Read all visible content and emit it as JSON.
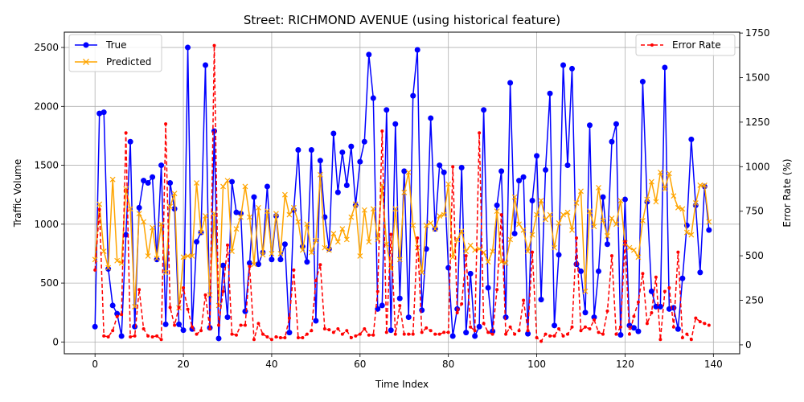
{
  "chart_data": {
    "type": "line",
    "title": "Street: RICHMOND AVENUE (using historical feature)",
    "xlabel": "Time Index",
    "ylabel_left": "Traffic Volume",
    "ylabel_right": "Error Rate (%)",
    "xlim": [
      -6.95,
      145.95
    ],
    "ylim_left": [
      -100,
      2630
    ],
    "ylim_right": [
      -50,
      1755
    ],
    "xticks": [
      0,
      20,
      40,
      60,
      80,
      100,
      120,
      140
    ],
    "yticks_left": [
      0,
      500,
      1000,
      1500,
      2000,
      2500
    ],
    "yticks_right": [
      0,
      250,
      500,
      750,
      1000,
      1250,
      1500,
      1750
    ],
    "grid": true,
    "legend_left": "upper-left",
    "legend_right": "upper-right",
    "colors": {
      "true": "#0000ff",
      "predicted": "#ffa500",
      "error": "#ff0000"
    },
    "series": [
      {
        "name": "True",
        "axis": "left",
        "values": [
          130,
          1940,
          1950,
          620,
          310,
          240,
          50,
          910,
          1700,
          130,
          1140,
          1370,
          1350,
          1400,
          700,
          1500,
          150,
          1350,
          1130,
          150,
          100,
          2500,
          110,
          850,
          930,
          2350,
          120,
          1790,
          30,
          650,
          210,
          1360,
          1100,
          1090,
          260,
          670,
          1230,
          660,
          760,
          1320,
          700,
          1070,
          700,
          830,
          80,
          1120,
          1630,
          810,
          680,
          1630,
          180,
          1540,
          1060,
          790,
          1770,
          1270,
          1610,
          1330,
          1660,
          1160,
          1530,
          1700,
          2440,
          2070,
          280,
          310,
          1970,
          100,
          1850,
          370,
          1450,
          210,
          2090,
          2480,
          270,
          790,
          1900,
          960,
          1500,
          1440,
          630,
          50,
          280,
          1480,
          80,
          580,
          50,
          130,
          1970,
          460,
          90,
          1160,
          1450,
          210,
          2200,
          920,
          1370,
          1400,
          70,
          1200,
          1580,
          360,
          1460,
          2110,
          140,
          740,
          2350,
          1500,
          2320,
          660,
          600,
          250,
          1840,
          210,
          600,
          1230,
          830,
          1700,
          1850,
          60,
          1210,
          140,
          120,
          90,
          2210,
          1190,
          430,
          300,
          300,
          2330,
          280,
          290,
          110,
          540,
          990,
          1720,
          1160,
          590,
          1320,
          950
        ]
      },
      {
        "name": "Predicted",
        "axis": "left",
        "values": [
          700,
          1170,
          770,
          630,
          1380,
          690,
          670,
          1300,
          1130,
          300,
          1090,
          1020,
          730,
          970,
          710,
          1000,
          590,
          1150,
          1260,
          290,
          720,
          730,
          730,
          1350,
          930,
          1070,
          400,
          1090,
          310,
          1320,
          1370,
          770,
          960,
          1060,
          1320,
          1060,
          660,
          1140,
          740,
          1110,
          750,
          1090,
          750,
          1250,
          1080,
          1140,
          1020,
          780,
          1000,
          760,
          860,
          1420,
          800,
          780,
          920,
          850,
          960,
          870,
          1060,
          1170,
          730,
          1120,
          850,
          1130,
          870,
          1330,
          830,
          620,
          1130,
          700,
          1270,
          1440,
          990,
          800,
          590,
          990,
          1010,
          960,
          1070,
          1080,
          1340,
          720,
          870,
          940,
          770,
          820,
          780,
          790,
          760,
          680,
          770,
          1110,
          680,
          670,
          870,
          1230,
          1000,
          950,
          770,
          910,
          1080,
          1200,
          1040,
          1080,
          800,
          1010,
          1080,
          1100,
          950,
          1180,
          1280,
          430,
          1110,
          980,
          1310,
          1030,
          900,
          1050,
          1000,
          1200,
          840,
          800,
          780,
          720,
          1030,
          1210,
          1360,
          1190,
          1440,
          1300,
          1430,
          1240,
          1140,
          1130,
          930,
          910,
          1180,
          1330,
          1330,
          1020
        ]
      },
      {
        "name": "Error Rate",
        "axis": "right",
        "values": [
          420,
          760,
          50,
          45,
          80,
          160,
          170,
          1190,
          45,
          50,
          310,
          90,
          50,
          45,
          50,
          30,
          1240,
          210,
          110,
          210,
          320,
          200,
          100,
          60,
          80,
          280,
          90,
          1680,
          110,
          300,
          560,
          60,
          55,
          110,
          110,
          440,
          30,
          120,
          60,
          45,
          30,
          45,
          40,
          40,
          150,
          420,
          40,
          40,
          60,
          80,
          360,
          450,
          90,
          85,
          70,
          90,
          60,
          80,
          40,
          50,
          60,
          90,
          55,
          55,
          300,
          1200,
          70,
          620,
          60,
          220,
          60,
          60,
          60,
          600,
          70,
          95,
          80,
          60,
          60,
          70,
          70,
          1000,
          180,
          230,
          500,
          100,
          80,
          1190,
          120,
          70,
          60,
          310,
          730,
          60,
          100,
          60,
          80,
          250,
          80,
          520,
          40,
          20,
          60,
          50,
          50,
          90,
          50,
          60,
          100,
          600,
          80,
          100,
          90,
          140,
          70,
          60,
          190,
          500,
          60,
          100,
          580,
          60,
          160,
          240,
          400,
          120,
          180,
          380,
          30,
          300,
          320,
          100,
          520,
          40,
          60,
          30,
          150,
          130,
          120,
          110
        ]
      }
    ]
  }
}
